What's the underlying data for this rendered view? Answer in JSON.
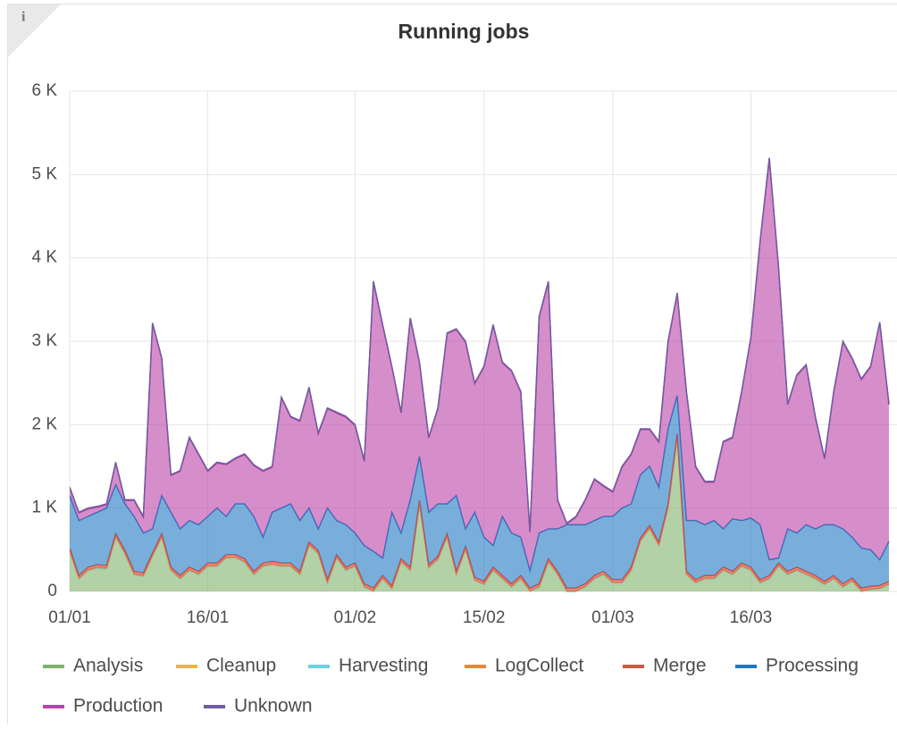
{
  "chart_data": {
    "type": "stacked_area",
    "title": "Running jobs",
    "x": [
      "01/01",
      "02/01",
      "03/01",
      "04/01",
      "05/01",
      "06/01",
      "07/01",
      "08/01",
      "09/01",
      "10/01",
      "11/01",
      "12/01",
      "13/01",
      "14/01",
      "15/01",
      "16/01",
      "17/01",
      "18/01",
      "19/01",
      "20/01",
      "21/01",
      "22/01",
      "23/01",
      "24/01",
      "25/01",
      "26/01",
      "27/01",
      "28/01",
      "29/01",
      "30/01",
      "31/01",
      "01/02",
      "02/02",
      "03/02",
      "04/02",
      "05/02",
      "06/02",
      "07/02",
      "08/02",
      "09/02",
      "10/02",
      "11/02",
      "12/02",
      "13/02",
      "14/02",
      "15/02",
      "16/02",
      "17/02",
      "18/02",
      "19/02",
      "20/02",
      "21/02",
      "22/02",
      "23/02",
      "24/02",
      "25/02",
      "26/02",
      "27/02",
      "28/02",
      "01/03",
      "02/03",
      "03/03",
      "04/03",
      "05/03",
      "06/03",
      "07/03",
      "08/03",
      "09/03",
      "10/03",
      "11/03",
      "12/03",
      "13/03",
      "14/03",
      "15/03",
      "16/03",
      "17/03",
      "18/03",
      "19/03",
      "20/03",
      "21/03",
      "22/03",
      "23/03",
      "24/03",
      "25/03",
      "26/03",
      "27/03",
      "28/03",
      "29/03",
      "30/03",
      "31/03"
    ],
    "xticks": [
      "01/01",
      "16/01",
      "01/02",
      "15/02",
      "01/03",
      "16/03"
    ],
    "ylim": [
      0,
      6000
    ],
    "yticks": [
      0,
      {
        "value": 1000,
        "label": "1 K"
      },
      {
        "value": 2000,
        "label": "2 K"
      },
      {
        "value": 3000,
        "label": "3 K"
      },
      {
        "value": 4000,
        "label": "4 K"
      },
      {
        "value": 5000,
        "label": "5 K"
      },
      {
        "value": 6000,
        "label": "6 K"
      }
    ],
    "grid": true,
    "series": [
      {
        "name": "Analysis",
        "color": "#7eb26d",
        "values": [
          480,
          150,
          250,
          280,
          270,
          650,
          450,
          200,
          180,
          420,
          650,
          250,
          150,
          250,
          200,
          300,
          300,
          400,
          400,
          350,
          200,
          300,
          320,
          300,
          300,
          200,
          550,
          450,
          100,
          400,
          250,
          300,
          50,
          0,
          150,
          30,
          350,
          250,
          1050,
          280,
          380,
          650,
          200,
          500,
          130,
          80,
          250,
          150,
          50,
          150,
          0,
          50,
          350,
          200,
          0,
          0,
          50,
          150,
          200,
          100,
          100,
          250,
          600,
          750,
          550,
          1000,
          1850,
          200,
          100,
          150,
          150,
          250,
          200,
          300,
          250,
          100,
          150,
          300,
          200,
          250,
          200,
          150,
          80,
          150,
          50,
          120,
          0,
          20,
          30,
          80
        ]
      },
      {
        "name": "Cleanup",
        "color": "#eab839",
        "values": [
          0,
          0,
          0,
          0,
          0,
          0,
          0,
          0,
          0,
          0,
          0,
          0,
          0,
          0,
          0,
          0,
          0,
          0,
          0,
          0,
          0,
          0,
          0,
          0,
          0,
          0,
          0,
          0,
          0,
          0,
          0,
          0,
          0,
          0,
          0,
          0,
          0,
          0,
          0,
          0,
          0,
          0,
          0,
          0,
          0,
          0,
          0,
          0,
          0,
          0,
          0,
          0,
          0,
          0,
          0,
          0,
          0,
          0,
          0,
          0,
          0,
          0,
          0,
          0,
          0,
          0,
          0,
          0,
          0,
          0,
          0,
          0,
          0,
          0,
          0,
          0,
          0,
          0,
          0,
          0,
          0,
          0,
          0,
          0,
          0,
          0,
          0,
          0,
          0,
          0
        ]
      },
      {
        "name": "Harvesting",
        "color": "#6ed0e0",
        "values": [
          0,
          0,
          0,
          0,
          0,
          0,
          0,
          0,
          0,
          0,
          0,
          0,
          0,
          0,
          0,
          0,
          0,
          0,
          0,
          0,
          0,
          0,
          0,
          0,
          0,
          0,
          0,
          0,
          0,
          0,
          0,
          0,
          0,
          0,
          0,
          0,
          0,
          0,
          0,
          0,
          0,
          0,
          0,
          0,
          0,
          0,
          0,
          0,
          0,
          0,
          0,
          0,
          0,
          0,
          0,
          0,
          0,
          0,
          0,
          0,
          0,
          0,
          0,
          0,
          0,
          0,
          0,
          0,
          0,
          0,
          0,
          0,
          0,
          0,
          0,
          0,
          0,
          0,
          0,
          0,
          0,
          0,
          0,
          0,
          0,
          0,
          0,
          0,
          0,
          0
        ]
      },
      {
        "name": "LogCollect",
        "color": "#ef843c",
        "values": [
          10,
          10,
          10,
          10,
          10,
          10,
          10,
          10,
          10,
          10,
          10,
          10,
          10,
          10,
          10,
          10,
          10,
          10,
          10,
          10,
          10,
          10,
          10,
          10,
          10,
          10,
          10,
          10,
          10,
          10,
          10,
          10,
          10,
          10,
          10,
          10,
          10,
          10,
          10,
          10,
          10,
          10,
          10,
          10,
          10,
          10,
          10,
          10,
          10,
          10,
          10,
          10,
          10,
          10,
          10,
          10,
          10,
          10,
          10,
          10,
          10,
          10,
          10,
          10,
          10,
          10,
          10,
          10,
          10,
          10,
          10,
          10,
          10,
          10,
          10,
          10,
          10,
          10,
          10,
          10,
          10,
          10,
          10,
          10,
          10,
          10,
          10,
          10,
          10,
          10
        ]
      },
      {
        "name": "Merge",
        "color": "#e24d42",
        "values": [
          30,
          30,
          30,
          30,
          30,
          30,
          30,
          30,
          30,
          30,
          30,
          30,
          30,
          30,
          30,
          30,
          30,
          30,
          30,
          30,
          30,
          30,
          30,
          30,
          30,
          30,
          30,
          30,
          30,
          30,
          30,
          30,
          30,
          30,
          30,
          30,
          30,
          30,
          30,
          30,
          30,
          30,
          30,
          30,
          30,
          30,
          30,
          30,
          30,
          30,
          30,
          30,
          30,
          30,
          30,
          30,
          30,
          30,
          30,
          30,
          30,
          30,
          30,
          30,
          30,
          30,
          30,
          30,
          30,
          30,
          30,
          30,
          30,
          30,
          30,
          30,
          30,
          30,
          30,
          30,
          30,
          30,
          30,
          30,
          30,
          30,
          30,
          30,
          30,
          30
        ]
      },
      {
        "name": "Processing",
        "color": "#1f78c1",
        "values": [
          630,
          660,
          610,
          630,
          690,
          590,
          560,
          660,
          480,
          290,
          460,
          660,
          560,
          560,
          560,
          560,
          660,
          460,
          610,
          660,
          660,
          310,
          590,
          660,
          710,
          610,
          410,
          260,
          860,
          410,
          510,
          360,
          460,
          440,
          210,
          880,
          310,
          810,
          530,
          630,
          630,
          360,
          910,
          210,
          780,
          530,
          260,
          710,
          610,
          460,
          210,
          610,
          360,
          510,
          760,
          760,
          710,
          660,
          660,
          760,
          860,
          760,
          760,
          710,
          660,
          910,
          460,
          610,
          710,
          610,
          660,
          460,
          630,
          510,
          590,
          660,
          190,
          60,
          510,
          410,
          560,
          560,
          680,
          610,
          660,
          490,
          480,
          440,
          310,
          480
        ]
      },
      {
        "name": "Production",
        "color": "#ba43a9",
        "values": [
          90,
          90,
          90,
          60,
          40,
          260,
          40,
          190,
          190,
          2460,
          1640,
          440,
          690,
          990,
          840,
          540,
          540,
          620,
          540,
          590,
          610,
          790,
          540,
          1320,
          1040,
          1190,
          1440,
          1140,
          1190,
          1290,
          1290,
          1290,
          1010,
          3230,
          2790,
          1740,
          1440,
          2170,
          1120,
          890,
          1140,
          2040,
          1990,
          2240,
          1540,
          2040,
          2640,
          1840,
          1940,
          1740,
          460,
          2590,
          2960,
          340,
          10,
          90,
          290,
          490,
          360,
          290,
          490,
          590,
          540,
          440,
          540,
          1040,
          1220,
          1540,
          640,
          510,
          460,
          1040,
          970,
          1540,
          2160,
          3390,
          4810,
          3490,
          1490,
          1890,
          1910,
          1340,
          790,
          1590,
          2240,
          2140,
          2020,
          2190,
          2840,
          1640
        ]
      },
      {
        "name": "Unknown",
        "color": "#705da0",
        "values": [
          10,
          10,
          10,
          10,
          10,
          10,
          10,
          10,
          10,
          10,
          10,
          10,
          10,
          10,
          10,
          10,
          10,
          10,
          10,
          10,
          10,
          10,
          10,
          10,
          10,
          10,
          10,
          10,
          10,
          10,
          10,
          10,
          10,
          10,
          10,
          10,
          10,
          10,
          10,
          10,
          10,
          10,
          10,
          10,
          10,
          10,
          10,
          10,
          10,
          10,
          10,
          10,
          10,
          10,
          10,
          10,
          10,
          10,
          10,
          10,
          10,
          10,
          10,
          10,
          10,
          10,
          10,
          10,
          10,
          10,
          10,
          10,
          10,
          10,
          10,
          10,
          10,
          10,
          10,
          10,
          10,
          10,
          10,
          10,
          10,
          10,
          10,
          10,
          10,
          10
        ]
      }
    ]
  }
}
